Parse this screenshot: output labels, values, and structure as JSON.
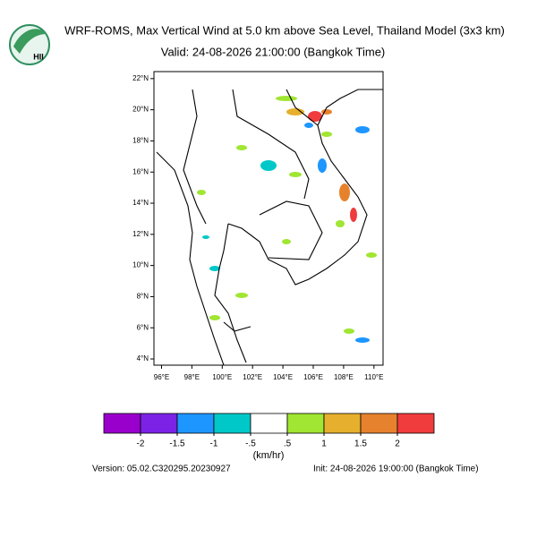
{
  "logo": {
    "text": "HII"
  },
  "title": "WRF-ROMS, Max Vertical Wind at 5.0 km above Sea Level, Thailand Model (3x3 km)",
  "valid": "Valid: 24-08-2026 21:00:00 (Bangkok Time)",
  "map": {
    "xlim": [
      95.5,
      110.6
    ],
    "ylim": [
      3.6,
      22.45
    ],
    "xticks": [
      {
        "value": 96,
        "label": "96°E"
      },
      {
        "value": 98,
        "label": "98°E"
      },
      {
        "value": 100,
        "label": "100°E"
      },
      {
        "value": 102,
        "label": "102°E"
      },
      {
        "value": 104,
        "label": "104°E"
      },
      {
        "value": 106,
        "label": "106°E"
      },
      {
        "value": 108,
        "label": "108°E"
      },
      {
        "value": 110,
        "label": "110°E"
      }
    ],
    "yticks": [
      {
        "value": 4,
        "label": "4°N"
      },
      {
        "value": 6,
        "label": "6°N"
      },
      {
        "value": 8,
        "label": "8°N"
      },
      {
        "value": 10,
        "label": "10°N"
      },
      {
        "value": 12,
        "label": "12°N"
      },
      {
        "value": 14,
        "label": "14°N"
      },
      {
        "value": 16,
        "label": "16°N"
      },
      {
        "value": 18,
        "label": "18°N"
      },
      {
        "value": 20,
        "label": "20°N"
      },
      {
        "value": 22,
        "label": "22°N"
      }
    ]
  },
  "colorbar": {
    "colors": [
      "#9a00cc",
      "#7b22e6",
      "#1e96ff",
      "#00c8c8",
      "#ffffff",
      "#a0e632",
      "#e6af2d",
      "#e6822d",
      "#f03c3c"
    ],
    "levels": [
      -2,
      {
        "value": -1.5,
        "label": "-1.5"
      },
      -1,
      {
        "value": -0.5,
        "label": "-.5"
      },
      {
        "value": 0.5,
        "label": ".5"
      },
      1,
      {
        "value": 1.5,
        "label": "1.5"
      },
      2
    ],
    "unit": "(km/hr)"
  },
  "version": "Version: 05.02.C320295.20230927",
  "init": "Init: 24-08-2026 19:00:00 (Bangkok Time)"
}
